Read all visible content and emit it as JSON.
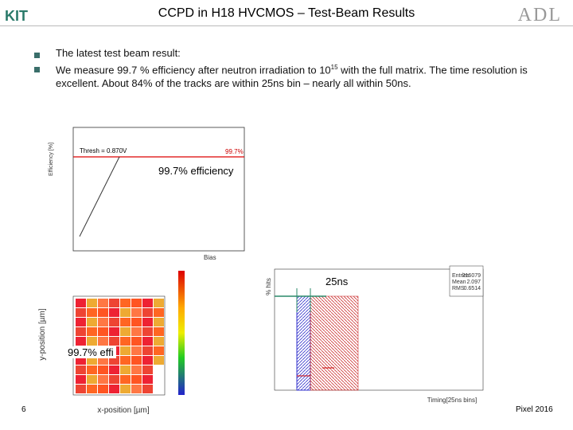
{
  "header": {
    "title": "CCPD in H18 HVCMOS – Test-Beam Results",
    "logo_left": "KIT",
    "logo_right": "ADL"
  },
  "bullets": [
    {
      "text": "The latest test beam result:"
    },
    {
      "text_before": "We measure 99.7 % efficiency after neutron irradiation to 10",
      "superscript": "15",
      "text_after": " with the full matrix. The time resolution is excellent. About 84% of the tracks are within 25ns bin – nearly all within 50ns."
    }
  ],
  "efficiency_plot": {
    "threshold_label": "Thresh = 0.870V",
    "efficiency_label": "99.7%",
    "y_axis": "Efficiency [%]",
    "x_axis": "Bias",
    "annotation": "99.7% efficiency"
  },
  "map_plot": {
    "x_axis": "x-position [µm]",
    "y_axis": "y-position [µm]",
    "annotation": "99.7% effi"
  },
  "timing_plot": {
    "y_axis": "% hits",
    "x_axis": "Timing[25ns bins]",
    "annotation": "25ns",
    "stats": [
      [
        "Entries",
        "216079"
      ],
      [
        "Mean",
        "2.097"
      ],
      [
        "RMS",
        "0.6514"
      ]
    ]
  },
  "footer": {
    "page": "6",
    "event": "Pixel 2016"
  }
}
